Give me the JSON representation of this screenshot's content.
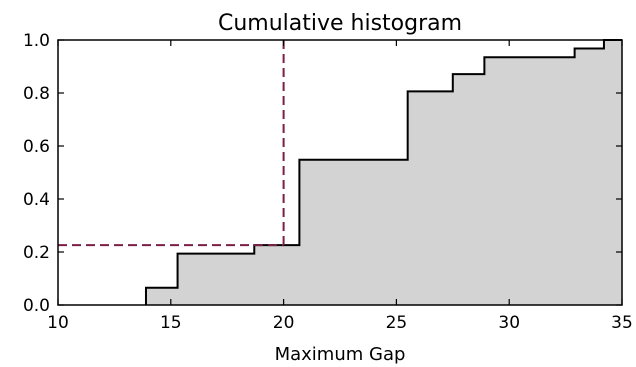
{
  "chart_data": {
    "type": "area",
    "step": true,
    "title": "Cumulative histogram",
    "xlabel": "Maximum Gap",
    "ylabel": "",
    "xlim": [
      10,
      35
    ],
    "ylim": [
      0.0,
      1.0
    ],
    "xticks": [
      "10",
      "15",
      "20",
      "25",
      "30",
      "35"
    ],
    "yticks": [
      "0.0",
      "0.2",
      "0.4",
      "0.6",
      "0.8",
      "1.0"
    ],
    "grid": false,
    "fill_color": "#d3d3d3",
    "line_color": "#000000",
    "steps": [
      {
        "x": 13.9,
        "y": 0.0
      },
      {
        "x": 13.9,
        "y": 0.065
      },
      {
        "x": 15.3,
        "y": 0.065
      },
      {
        "x": 15.3,
        "y": 0.194
      },
      {
        "x": 18.7,
        "y": 0.194
      },
      {
        "x": 18.7,
        "y": 0.226
      },
      {
        "x": 20.7,
        "y": 0.226
      },
      {
        "x": 20.7,
        "y": 0.548
      },
      {
        "x": 25.5,
        "y": 0.548
      },
      {
        "x": 25.5,
        "y": 0.806
      },
      {
        "x": 27.5,
        "y": 0.806
      },
      {
        "x": 27.5,
        "y": 0.871
      },
      {
        "x": 28.9,
        "y": 0.871
      },
      {
        "x": 28.9,
        "y": 0.935
      },
      {
        "x": 32.9,
        "y": 0.935
      },
      {
        "x": 32.9,
        "y": 0.968
      },
      {
        "x": 34.2,
        "y": 0.968
      },
      {
        "x": 34.2,
        "y": 1.0
      },
      {
        "x": 35.0,
        "y": 1.0
      }
    ],
    "reference_lines": {
      "x": 20,
      "y": 0.226,
      "color": "#7a1f45",
      "style": "dashed"
    }
  }
}
